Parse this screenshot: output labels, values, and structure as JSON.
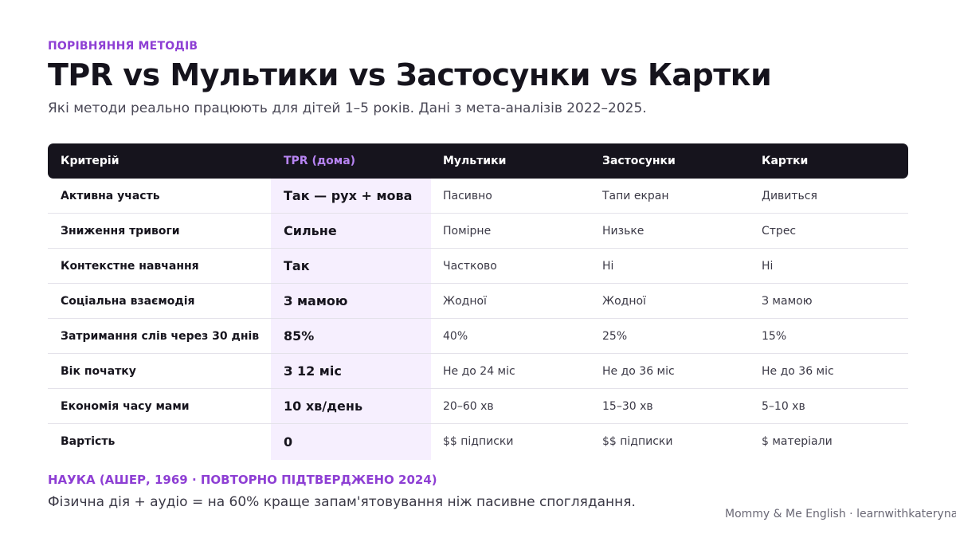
{
  "header": {
    "eyebrow": "ПОРІВНЯННЯ МЕТОДІВ",
    "title": "TPR vs Мультики vs Застосунки vs Картки",
    "subtitle": "Які методи реально працюють для дітей 1–5 років. Дані з мета-аналізів 2022–2025."
  },
  "table": {
    "columns": [
      "Критерій",
      "TPR (дома)",
      "Мультики",
      "Застосунки",
      "Картки"
    ],
    "rows": [
      [
        "Активна участь",
        "Так — рух + мова",
        "Пасивно",
        "Тапи екран",
        "Дивиться"
      ],
      [
        "Зниження тривоги",
        "Сильне",
        "Помірне",
        "Низьке",
        "Стрес"
      ],
      [
        "Контекстне навчання",
        "Так",
        "Частково",
        "Ні",
        "Ні"
      ],
      [
        "Соціальна взаємодія",
        "З мамою",
        "Жодної",
        "Жодної",
        "З мамою"
      ],
      [
        "Затримання слів через 30 днів",
        "85%",
        "40%",
        "25%",
        "15%"
      ],
      [
        "Вік початку",
        "З 12 міс",
        "Не до 24 міс",
        "Не до 36 міс",
        "Не до 36 міс"
      ],
      [
        "Економія часу мами",
        "10 хв/день",
        "20–60 хв",
        "15–30 хв",
        "5–10 хв"
      ],
      [
        "Вартість",
        "0",
        "$$ підписки",
        "$$ підписки",
        "$ матеріали"
      ]
    ]
  },
  "science": {
    "title": "НАУКА (АШЕР, 1969 · ПОВТОРНО ПІДТВЕРДЖЕНО 2024)",
    "text": "Фізична дія + аудіо = на 60% краще запам'ятовування ніж пасивне споглядання."
  },
  "footer": {
    "credit": "Mommy & Me English · learnwithkateryna."
  },
  "colors": {
    "accent": "#8e3fd4",
    "header_bg": "#16141d",
    "highlight_bg": "#f6effe",
    "header_accent_text": "#b784f2"
  }
}
